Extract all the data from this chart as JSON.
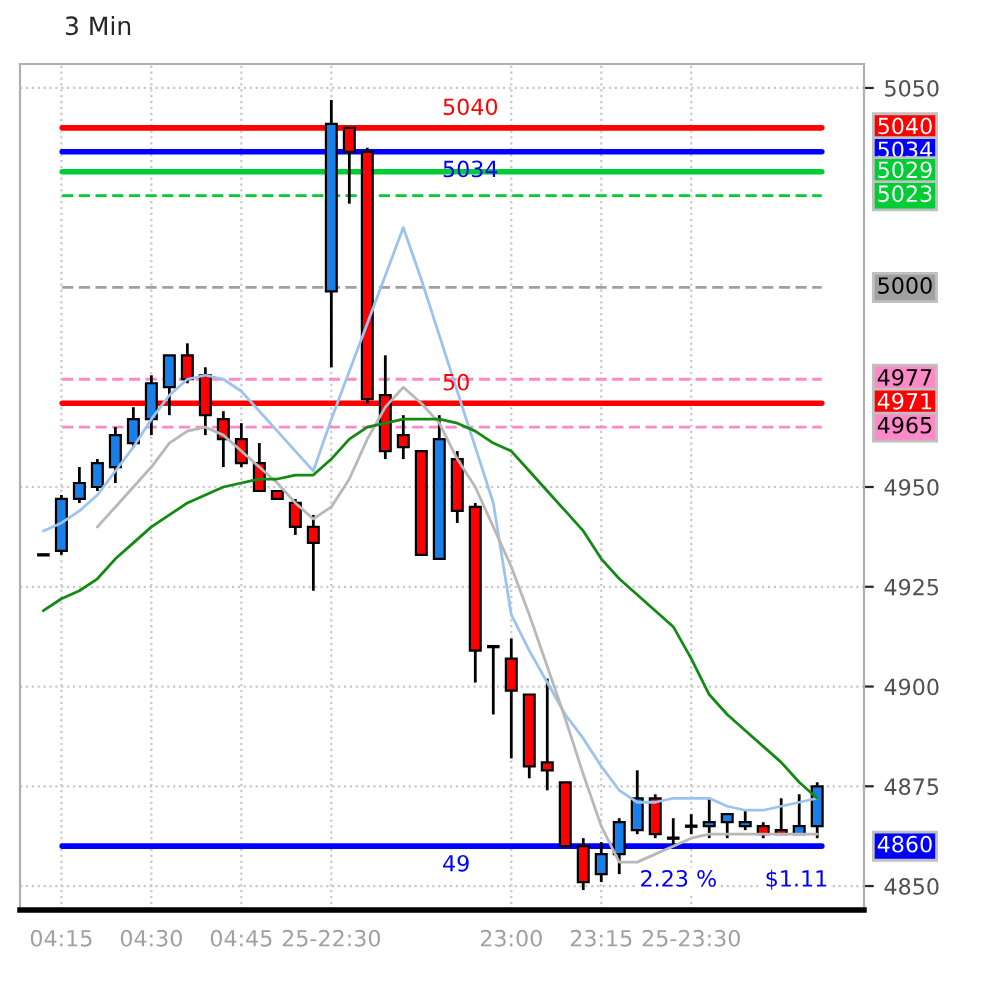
{
  "chart_data": {
    "type": "candlestick",
    "title": "3 Min",
    "categories": [
      null,
      "04:15",
      null,
      null,
      null,
      null,
      "04:30",
      null,
      null,
      null,
      null,
      "04:45",
      null,
      null,
      null,
      null,
      "25-22:30",
      null,
      null,
      null,
      null,
      null,
      null,
      null,
      null,
      null,
      "23:00",
      null,
      null,
      null,
      null,
      "23:15",
      null,
      null,
      null,
      null,
      "25-23:30",
      null,
      null,
      null,
      null,
      null,
      null,
      null
    ],
    "ohlc": [
      [
        4933,
        4933,
        4933,
        4933
      ],
      [
        4934,
        4948,
        4933,
        4947
      ],
      [
        4947,
        4955,
        4946,
        4951
      ],
      [
        4950,
        4957,
        4949,
        4956
      ],
      [
        4955,
        4965,
        4951,
        4963
      ],
      [
        4961,
        4970,
        4960,
        4967
      ],
      [
        4967,
        4978,
        4963,
        4976
      ],
      [
        4975,
        4983,
        4968,
        4983
      ],
      [
        4983,
        4986,
        4976,
        4977
      ],
      [
        4978,
        4980,
        4963,
        4968
      ],
      [
        4967,
        4969,
        4955,
        4962
      ],
      [
        4962,
        4966,
        4955,
        4956
      ],
      [
        4956,
        4961,
        4949,
        4949
      ],
      [
        4949,
        4949,
        4947,
        4947
      ],
      [
        4946,
        4947,
        4938,
        4940
      ],
      [
        4940,
        4943,
        4924,
        4936
      ],
      [
        4999,
        5047,
        4980,
        5041
      ],
      [
        5040,
        5040,
        5021,
        5034
      ],
      [
        5034,
        5035,
        4971,
        4972
      ],
      [
        4973,
        4983,
        4957,
        4959
      ],
      [
        4963,
        4968,
        4957,
        4960
      ],
      [
        4959,
        4959,
        4933,
        4933
      ],
      [
        4932,
        4968,
        4932,
        4962
      ],
      [
        4957,
        4959,
        4941,
        4944
      ],
      [
        4945,
        4946,
        4901,
        4909
      ],
      [
        4910,
        4910,
        4893,
        4910
      ],
      [
        4907,
        4912,
        4882,
        4899
      ],
      [
        4898,
        4898,
        4877,
        4880
      ],
      [
        4881,
        4902,
        4874,
        4879
      ],
      [
        4876,
        4876,
        4860,
        4860
      ],
      [
        4860,
        4862,
        4849,
        4851
      ],
      [
        4853,
        4861,
        4851,
        4858
      ],
      [
        4858,
        4867,
        4853,
        4866
      ],
      [
        4864,
        4879,
        4863,
        4872
      ],
      [
        4872,
        4873,
        4862,
        4863
      ],
      [
        4862,
        4867,
        4860,
        4862
      ],
      [
        4865,
        4868,
        4863,
        4865
      ],
      [
        4865,
        4872,
        4862,
        4866
      ],
      [
        4866,
        4868,
        4862,
        4868
      ],
      [
        4865,
        4869,
        4864,
        4866
      ],
      [
        4865,
        4866,
        4862,
        4863
      ],
      [
        4864,
        4872,
        4863,
        4863
      ],
      [
        4863,
        4873,
        4863,
        4865
      ],
      [
        4865,
        4876,
        4862,
        4875
      ]
    ],
    "colors": [
      "#000000",
      "#1a7fe8",
      "#1a7fe8",
      "#1a7fe8",
      "#1a7fe8",
      "#1a7fe8",
      "#1a7fe8",
      "#1a7fe8",
      "#ff0000",
      "#ff0000",
      "#ff0000",
      "#ff0000",
      "#ff0000",
      "#ff0000",
      "#ff0000",
      "#ff0000",
      "#1a7fe8",
      "#ff0000",
      "#ff0000",
      "#ff0000",
      "#ff0000",
      "#ff0000",
      "#1a7fe8",
      "#ff0000",
      "#ff0000",
      "#000000",
      "#ff0000",
      "#ff0000",
      "#ff0000",
      "#ff0000",
      "#ff0000",
      "#1a7fe8",
      "#1a7fe8",
      "#1a7fe8",
      "#ff0000",
      "#000000",
      "#000000",
      "#1a7fe8",
      "#1a7fe8",
      "#1a7fe8",
      "#ff0000",
      "#ff0000",
      "#1a7fe8",
      "#1a7fe8"
    ],
    "series": [
      {
        "type": "line",
        "color": "#9cc3ee",
        "values": [
          4939,
          4941,
          4944,
          4948,
          4954,
          4960,
          4967,
          4973,
          4977,
          4978,
          4977,
          4974,
          4969,
          4964,
          4959,
          4954,
          4967,
          4979,
          4991,
          5003,
          5015,
          5002,
          4988,
          4974,
          4960,
          4946,
          4918,
          4909,
          4901,
          4893,
          4887,
          4880,
          4874,
          4871,
          4871,
          4872,
          4872,
          4872,
          4870,
          4869,
          4869,
          4870,
          4871,
          4872
        ]
      },
      {
        "type": "line",
        "color": "#b8b8b8",
        "values": [
          null,
          null,
          null,
          4940,
          4945,
          4950,
          4955,
          4961,
          4964,
          4965,
          4963,
          4959,
          4955,
          4951,
          4946,
          4942,
          4945,
          4952,
          4962,
          4970,
          4975,
          4971,
          4966,
          4957,
          4950,
          4940,
          4930,
          4918,
          4905,
          4892,
          4878,
          4865,
          4856,
          4856,
          4858,
          4860,
          4862,
          4863,
          4863,
          4863,
          4863,
          4863,
          4863,
          4863
        ]
      },
      {
        "type": "line",
        "color": "#138a13",
        "values": [
          4919,
          4922,
          4924,
          4927,
          4932,
          4936,
          4940,
          4943,
          4946,
          4948,
          4950,
          4951,
          4952,
          4952,
          4953,
          4953,
          4957,
          4962,
          4965,
          4966,
          4967,
          4967,
          4967,
          4966,
          4964,
          4961,
          4959,
          4954,
          4949,
          4944,
          4939,
          4932,
          4927,
          4923,
          4919,
          4915,
          4907,
          4898,
          4893,
          4889,
          4885,
          4881,
          4876,
          4872
        ]
      }
    ],
    "ylim": [
      4844,
      5056
    ],
    "yticks": [
      4850,
      4875,
      4900,
      4925,
      4950,
      5050
    ],
    "grid": true,
    "ref_lines": [
      {
        "axis": "y",
        "value": 5040,
        "label": "5040",
        "color": "#ff0000"
      },
      {
        "axis": "y",
        "value": 5034,
        "label": "5034",
        "color": "#0000ff"
      },
      {
        "axis": "y",
        "value": 5029,
        "label": "5029",
        "color": "#00cc33"
      },
      {
        "axis": "y",
        "value": 5023,
        "label": "5023",
        "color": "#00cc33",
        "line_style": "dashed"
      },
      {
        "axis": "y",
        "value": 5000,
        "label": "5000",
        "color": "#a0a0a0",
        "line_style": "dashed"
      },
      {
        "axis": "y",
        "value": 4977,
        "label": "4977",
        "color": "#ff88c8",
        "line_style": "dashed"
      },
      {
        "axis": "y",
        "value": 4971,
        "label": "4971",
        "color": "#ff0000"
      },
      {
        "axis": "y",
        "value": 4965,
        "label": "4965",
        "color": "#ff88c8",
        "line_style": "dashed"
      },
      {
        "axis": "y",
        "value": 4860,
        "label": "4860",
        "color": "#0000ff"
      }
    ],
    "annotations": [
      {
        "text": "5040",
        "y": 5040
      },
      {
        "text": "5034",
        "y": 5034
      },
      {
        "text": "50",
        "y": 4971
      },
      {
        "text": "49",
        "y": 4860
      },
      "$1.11",
      "2.23 %"
    ]
  }
}
